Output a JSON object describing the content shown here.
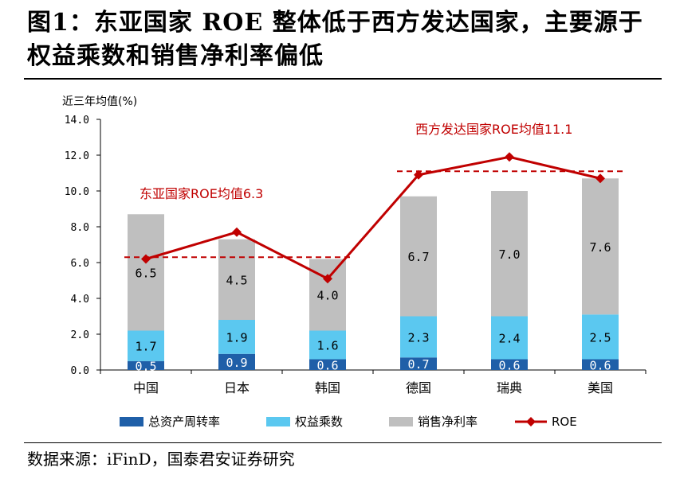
{
  "figure": {
    "title": "图1：东亚国家 ROE 整体低于西方发达国家，主要源于权益乘数和销售净利率偏低",
    "source": "数据来源：iFinD，国泰君安证券研究"
  },
  "chart_data": {
    "type": "bar",
    "stacked": true,
    "unit_label": "近三年均值(%)",
    "categories": [
      "中国",
      "日本",
      "韩国",
      "德国",
      "瑞典",
      "美国"
    ],
    "ylim": [
      0,
      14
    ],
    "yticks": [
      0,
      2,
      4,
      6,
      8,
      10,
      12,
      14
    ],
    "ytick_labels": [
      "0.0",
      "2.0",
      "4.0",
      "6.0",
      "8.0",
      "10.0",
      "12.0",
      "14.0"
    ],
    "series": [
      {
        "name": "总资产周转率",
        "kind": "bar",
        "color": "#1f5fa8",
        "values": [
          0.5,
          0.9,
          0.6,
          0.7,
          0.6,
          0.6
        ],
        "labels": [
          "0.5",
          "0.9",
          "0.6",
          "0.7",
          "0.6",
          "0.6"
        ]
      },
      {
        "name": "权益乘数",
        "kind": "bar",
        "color": "#5bc8f0",
        "values": [
          1.7,
          1.9,
          1.6,
          2.3,
          2.4,
          2.5
        ],
        "labels": [
          "1.7",
          "1.9",
          "1.6",
          "2.3",
          "2.4",
          "2.5"
        ]
      },
      {
        "name": "销售净利率",
        "kind": "bar",
        "color": "#bfbfbf",
        "values": [
          6.5,
          4.5,
          4.0,
          6.7,
          7.0,
          7.6
        ],
        "labels": [
          "6.5",
          "4.5",
          "4.0",
          "6.7",
          "7.0",
          "7.6"
        ]
      },
      {
        "name": "ROE",
        "kind": "line",
        "color": "#c00000",
        "values": [
          6.2,
          7.7,
          5.1,
          10.9,
          11.9,
          10.7
        ]
      }
    ],
    "bar_totals": [
      8.7,
      7.3,
      6.2,
      9.7,
      10.0,
      10.7
    ],
    "reference_lines": [
      {
        "label": "东亚国家ROE均值6.3",
        "value": 6.3,
        "from": 0,
        "to": 2,
        "color": "#c00000",
        "style": "dashed"
      },
      {
        "label": "西方发达国家ROE均值11.1",
        "value": 11.1,
        "from": 3,
        "to": 5,
        "color": "#c00000",
        "style": "dashed"
      }
    ],
    "legend_position": "bottom"
  }
}
